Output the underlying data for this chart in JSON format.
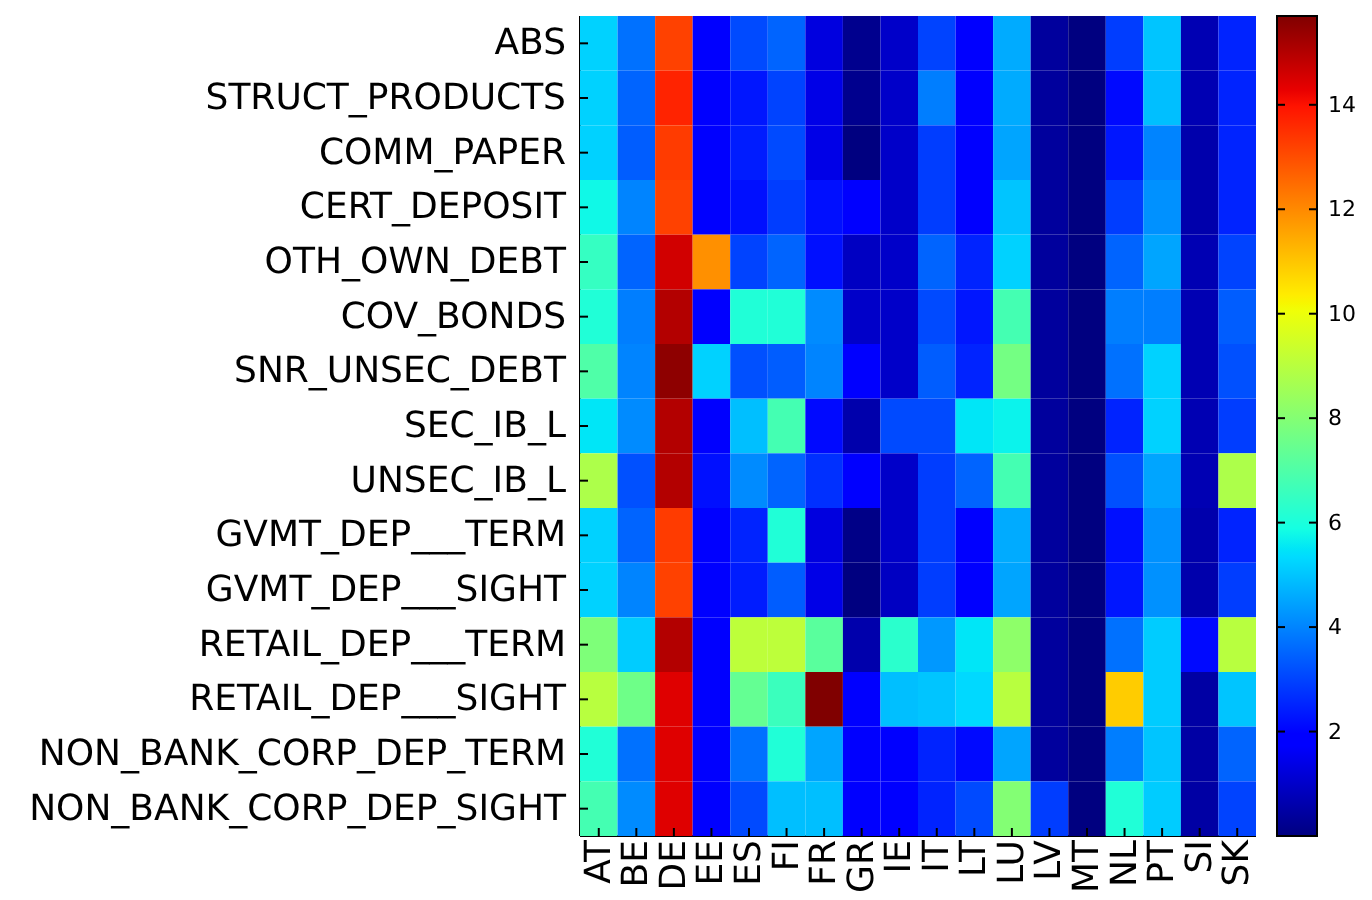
{
  "chart_data": {
    "type": "heatmap",
    "categories": [
      "AT",
      "BE",
      "DE",
      "EE",
      "ES",
      "FI",
      "FR",
      "GR",
      "IE",
      "IT",
      "LT",
      "LU",
      "LV",
      "MT",
      "NL",
      "PT",
      "SI",
      "SK"
    ],
    "y_categories": [
      "ABS",
      "STRUCT_PRODUCTS",
      "COMM_PAPER",
      "CERT_DEPOSIT",
      "OTH_OWN_DEBT",
      "COV_BONDS",
      "SNR_UNSEC_DEBT",
      "SEC_IB_L",
      "UNSEC_IB_L",
      "GVMT_DEP___TERM",
      "GVMT_DEP___SIGHT",
      "RETAIL_DEP___TERM",
      "RETAIL_DEP___SIGHT",
      "NON_BANK_CORP_DEP_TERM",
      "NON_BANK_CORP_DEP_SIGHT"
    ],
    "cells": [
      [
        5.2,
        3.7,
        13.2,
        1.9,
        3.1,
        3.5,
        1.3,
        0.2,
        1.0,
        3.0,
        1.8,
        4.6,
        0.4,
        0.0,
        2.9,
        5.0,
        0.7,
        2.5
      ],
      [
        5.2,
        3.5,
        13.7,
        1.9,
        2.3,
        3.0,
        1.4,
        0.2,
        1.0,
        3.9,
        1.8,
        4.6,
        0.4,
        0.0,
        2.1,
        4.9,
        0.7,
        2.5
      ],
      [
        5.2,
        3.4,
        13.3,
        1.9,
        2.4,
        3.1,
        1.4,
        0.0,
        1.0,
        2.9,
        1.8,
        4.5,
        0.4,
        0.0,
        2.3,
        4.0,
        0.6,
        2.5
      ],
      [
        5.8,
        4.0,
        13.2,
        1.9,
        2.2,
        2.9,
        2.2,
        1.8,
        1.0,
        2.9,
        1.8,
        5.0,
        0.4,
        0.0,
        2.9,
        4.2,
        0.6,
        2.5
      ],
      [
        6.5,
        3.5,
        14.6,
        11.9,
        3.0,
        3.5,
        2.2,
        0.9,
        1.0,
        3.5,
        2.5,
        5.2,
        0.4,
        0.0,
        3.5,
        4.5,
        0.7,
        3.0
      ],
      [
        6.1,
        3.9,
        15.0,
        1.9,
        6.1,
        6.1,
        4.1,
        1.0,
        1.0,
        3.1,
        2.3,
        6.8,
        0.4,
        0.0,
        3.9,
        3.9,
        0.7,
        3.4
      ],
      [
        7.0,
        4.0,
        15.5,
        5.2,
        3.2,
        3.4,
        4.0,
        1.8,
        1.0,
        3.4,
        2.5,
        7.7,
        0.4,
        0.0,
        3.7,
        5.2,
        0.7,
        3.2
      ],
      [
        5.5,
        4.1,
        15.0,
        1.9,
        4.9,
        6.8,
        2.1,
        0.6,
        3.1,
        3.1,
        5.5,
        5.7,
        0.4,
        0.0,
        2.5,
        5.2,
        0.7,
        2.9
      ],
      [
        8.8,
        3.2,
        15.0,
        2.2,
        4.1,
        3.5,
        2.7,
        1.8,
        1.0,
        2.9,
        3.5,
        6.8,
        0.4,
        0.0,
        3.2,
        4.5,
        0.7,
        8.8
      ],
      [
        5.2,
        3.5,
        13.3,
        1.9,
        2.5,
        6.1,
        1.3,
        0.1,
        1.0,
        2.9,
        1.8,
        4.6,
        0.4,
        0.0,
        2.2,
        4.2,
        0.6,
        2.5
      ],
      [
        5.2,
        4.0,
        13.2,
        1.9,
        2.4,
        3.4,
        1.4,
        0.0,
        0.9,
        2.9,
        1.8,
        4.5,
        0.4,
        0.0,
        2.3,
        4.2,
        0.6,
        2.9
      ],
      [
        7.9,
        5.1,
        15.0,
        1.9,
        9.1,
        9.1,
        7.2,
        0.6,
        6.3,
        4.3,
        5.5,
        8.2,
        0.4,
        0.0,
        3.7,
        5.1,
        2.1,
        9.0
      ],
      [
        9.0,
        7.6,
        14.4,
        1.9,
        7.4,
        6.6,
        15.7,
        1.8,
        4.9,
        5.0,
        5.3,
        9.0,
        0.4,
        0.0,
        10.9,
        5.1,
        0.5,
        5.0
      ],
      [
        6.1,
        3.7,
        14.4,
        1.9,
        3.7,
        6.1,
        4.5,
        1.8,
        1.8,
        2.5,
        2.1,
        4.5,
        0.4,
        0.0,
        3.9,
        5.0,
        0.5,
        3.5
      ],
      [
        6.8,
        4.1,
        14.4,
        1.9,
        3.1,
        4.9,
        4.9,
        1.8,
        1.8,
        2.5,
        3.1,
        8.0,
        2.9,
        0.0,
        6.1,
        5.1,
        0.5,
        3.0
      ]
    ],
    "clim": [
      0,
      15.7
    ],
    "cticks": [
      2,
      4,
      6,
      8,
      10,
      12,
      14
    ]
  }
}
